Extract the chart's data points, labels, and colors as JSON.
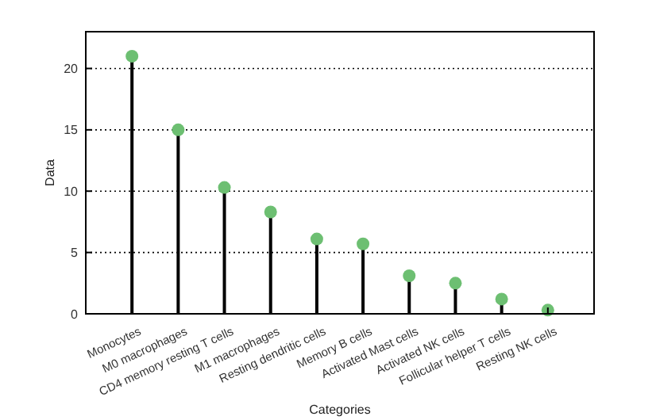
{
  "chart_data": {
    "type": "lollipop",
    "xlabel": "Categories",
    "ylabel": "Data",
    "categories": [
      "Monocytes",
      "M0 macrophages",
      "CD4 memory resting T cells",
      "M1 macrophages",
      "Resting dendritic cells",
      "Memory B cells",
      "Activated Mast cells",
      "Activated NK cells",
      "Follicular helper T cells",
      "Resting NK cells"
    ],
    "values": [
      21,
      15,
      10.3,
      8.3,
      6.1,
      5.7,
      3.1,
      2.5,
      1.2,
      0.3
    ],
    "color": "#6dbf72",
    "marker": "circle",
    "ylim": [
      0,
      23
    ],
    "yticks": [
      0,
      5,
      10,
      15,
      20
    ],
    "grid": "y"
  }
}
